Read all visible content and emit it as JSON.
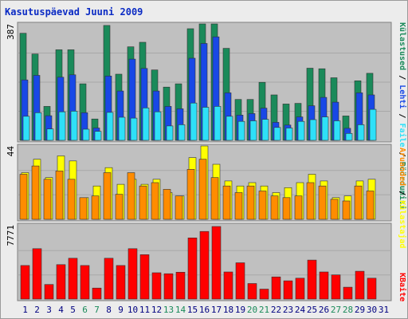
{
  "title": "Kasutuspäevad Juuni 2009",
  "colors": {
    "title": "#0b2bc4",
    "visits": "#1a8a5a",
    "pages": "#1848e6",
    "files": "#2ee0f8",
    "hits": "#ff8c00",
    "sites": "#ffff00",
    "kbytes": "#ff0000",
    "panel_bg": "#c0c0c0",
    "weekend_label": "#1a8a5a",
    "weekday_label": "#000080"
  },
  "chart_data": [
    {
      "type": "bar",
      "panel": "top",
      "ytick_label": "387",
      "ylim": [
        0,
        387
      ],
      "categories": [
        "1",
        "2",
        "3",
        "4",
        "5",
        "6",
        "7",
        "8",
        "9",
        "10",
        "11",
        "12",
        "13",
        "14",
        "15",
        "16",
        "17",
        "18",
        "19",
        "20",
        "21",
        "22",
        "23",
        "24",
        "25",
        "26",
        "27",
        "28",
        "29",
        "30",
        "31"
      ],
      "weekend_days": [
        "6",
        "7",
        "13",
        "14",
        "20",
        "21",
        "27",
        "28"
      ],
      "legend": [
        "Külastused",
        "Lehti",
        "Faile",
        "Pöördumisi"
      ],
      "series": [
        {
          "name": "Pöördumisi",
          "color": "#1a8a5a",
          "values": [
            356,
            287,
            113,
            301,
            301,
            188,
            71,
            382,
            220,
            311,
            326,
            234,
            177,
            188,
            371,
            387,
            387,
            306,
            136,
            136,
            193,
            151,
            121,
            123,
            240,
            238,
            208,
            81,
            198,
            223,
            0
          ]
        },
        {
          "name": "Lehti",
          "color": "#1848e6",
          "values": [
            201,
            216,
            82,
            210,
            218,
            92,
            41,
            214,
            164,
            270,
            239,
            164,
            113,
            105,
            273,
            322,
            344,
            158,
            84,
            89,
            107,
            60,
            51,
            78,
            115,
            143,
            127,
            40,
            158,
            151,
            0
          ]
        },
        {
          "name": "Faile",
          "color": "#2ee0f8",
          "values": [
            80,
            92,
            38,
            95,
            97,
            37,
            30,
            93,
            77,
            74,
            108,
            95,
            48,
            52,
            124,
            110,
            113,
            80,
            63,
            65,
            70,
            43,
            41,
            63,
            69,
            78,
            65,
            23,
            52,
            103,
            0
          ]
        }
      ]
    },
    {
      "type": "bar",
      "panel": "middle",
      "ytick_label": "44",
      "ylim": [
        0,
        44
      ],
      "categories": [
        "1",
        "2",
        "3",
        "4",
        "5",
        "6",
        "7",
        "8",
        "9",
        "10",
        "11",
        "12",
        "13",
        "14",
        "15",
        "16",
        "17",
        "18",
        "19",
        "20",
        "21",
        "22",
        "23",
        "24",
        "25",
        "26",
        "27",
        "28",
        "29",
        "30",
        "31"
      ],
      "legend": [
        "Aruanded",
        "Külastajad"
      ],
      "series": [
        {
          "name": "Külastajad",
          "color": "#ffff00",
          "values": [
            28,
            36,
            25,
            38,
            35,
            13,
            20,
            31,
            21,
            24,
            21,
            24,
            16,
            14,
            37,
            44,
            33,
            23,
            20,
            22,
            20,
            16,
            19,
            22,
            27,
            23,
            13,
            14,
            23,
            24,
            0
          ]
        },
        {
          "name": "Aruanded",
          "color": "#ff8c00",
          "values": [
            27,
            32,
            24,
            29,
            24,
            13,
            14,
            28,
            15,
            28,
            20,
            22,
            18,
            14,
            30,
            36,
            25,
            20,
            16,
            20,
            17,
            14,
            13,
            14,
            22,
            20,
            12,
            11,
            20,
            17,
            0
          ]
        }
      ]
    },
    {
      "type": "bar",
      "panel": "bottom",
      "ytick_label": "7771",
      "ylim": [
        0,
        7771
      ],
      "categories": [
        "1",
        "2",
        "3",
        "4",
        "5",
        "6",
        "7",
        "8",
        "9",
        "10",
        "11",
        "12",
        "13",
        "14",
        "15",
        "16",
        "17",
        "18",
        "19",
        "20",
        "21",
        "22",
        "23",
        "24",
        "25",
        "26",
        "27",
        "28",
        "29",
        "30",
        "31"
      ],
      "legend": [
        "KBaite"
      ],
      "series": [
        {
          "name": "KBaite",
          "color": "#ff0000",
          "values": [
            3595,
            5397,
            1565,
            3688,
            4369,
            3595,
            1176,
            4369,
            3595,
            5397,
            4754,
            2815,
            2715,
            2875,
            6552,
            7239,
            7771,
            2904,
            3882,
            1662,
            1068,
            2372,
            1953,
            2237,
            4172,
            2904,
            2590,
            1275,
            2977,
            2237,
            0
          ]
        }
      ]
    }
  ]
}
